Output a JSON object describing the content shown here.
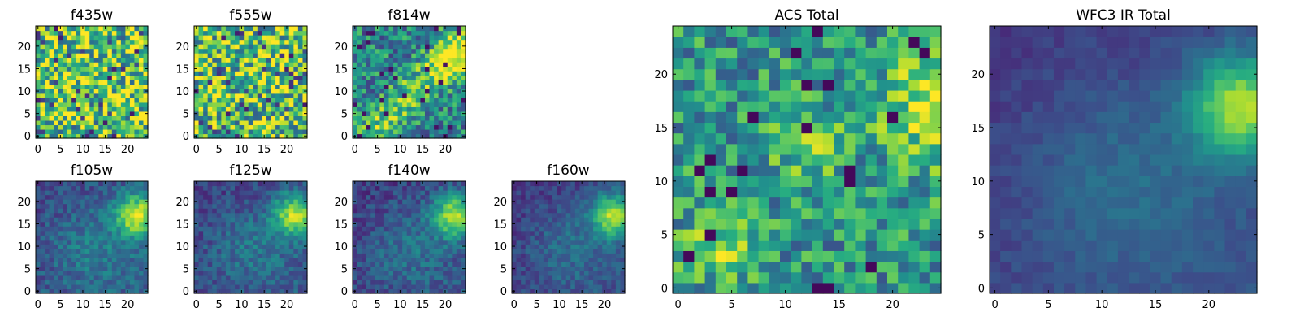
{
  "chart_data": [
    {
      "type": "heatmap",
      "title": "f435w",
      "grid": false,
      "colormap": "viridis",
      "pixels": [
        25,
        25
      ],
      "xlim": [
        -0.5,
        24.5
      ],
      "ylim": [
        -0.5,
        24.5
      ],
      "xticks": [
        "0",
        "5",
        "10",
        "15",
        "20"
      ],
      "yticks": [
        "0",
        "5",
        "10",
        "15",
        "20"
      ],
      "pattern": "uniform noise",
      "mean_level": 0.72,
      "hotspot_xy": null,
      "noise": 0.42,
      "seed": 11
    },
    {
      "type": "heatmap",
      "title": "f555w",
      "grid": false,
      "colormap": "viridis",
      "pixels": [
        25,
        25
      ],
      "xlim": [
        -0.5,
        24.5
      ],
      "ylim": [
        -0.5,
        24.5
      ],
      "xticks": [
        "0",
        "5",
        "10",
        "15",
        "20"
      ],
      "yticks": [
        "0",
        "5",
        "10",
        "15",
        "20"
      ],
      "pattern": "uniform noise",
      "mean_level": 0.72,
      "hotspot_xy": null,
      "noise": 0.42,
      "seed": 23
    },
    {
      "type": "heatmap",
      "title": "f814w",
      "grid": false,
      "colormap": "viridis",
      "pixels": [
        25,
        25
      ],
      "xlim": [
        -0.5,
        24.5
      ],
      "ylim": [
        -0.5,
        24.5
      ],
      "xticks": [
        "0",
        "5",
        "10",
        "15",
        "20"
      ],
      "yticks": [
        "0",
        "5",
        "10",
        "15",
        "20"
      ],
      "pattern": "diagonal ridge",
      "mean_level": 0.45,
      "hotspot_xy": [
        22,
        17
      ],
      "noise": 0.28,
      "seed": 37
    },
    {
      "type": "heatmap",
      "title": "f105w",
      "grid": false,
      "colormap": "viridis",
      "pixels": [
        25,
        25
      ],
      "xlim": [
        -0.5,
        24.5
      ],
      "ylim": [
        -0.5,
        24.5
      ],
      "xticks": [
        "0",
        "5",
        "10",
        "15",
        "20"
      ],
      "yticks": [
        "0",
        "5",
        "10",
        "15",
        "20"
      ],
      "pattern": "smooth gradient",
      "mean_level": 0.38,
      "hotspot_xy": [
        22,
        17
      ],
      "noise": 0.12,
      "seed": 41
    },
    {
      "type": "heatmap",
      "title": "f125w",
      "grid": false,
      "colormap": "viridis",
      "pixels": [
        25,
        25
      ],
      "xlim": [
        -0.5,
        24.5
      ],
      "ylim": [
        -0.5,
        24.5
      ],
      "xticks": [
        "0",
        "5",
        "10",
        "15",
        "20"
      ],
      "yticks": [
        "0",
        "5",
        "10",
        "15",
        "20"
      ],
      "pattern": "smooth gradient",
      "mean_level": 0.34,
      "hotspot_xy": [
        22,
        17
      ],
      "noise": 0.12,
      "seed": 53
    },
    {
      "type": "heatmap",
      "title": "f140w",
      "grid": false,
      "colormap": "viridis",
      "pixels": [
        25,
        25
      ],
      "xlim": [
        -0.5,
        24.5
      ],
      "ylim": [
        -0.5,
        24.5
      ],
      "xticks": [
        "0",
        "5",
        "10",
        "15",
        "20"
      ],
      "yticks": [
        "0",
        "5",
        "10",
        "15",
        "20"
      ],
      "pattern": "smooth gradient",
      "mean_level": 0.32,
      "hotspot_xy": [
        22,
        17
      ],
      "noise": 0.12,
      "seed": 67
    },
    {
      "type": "heatmap",
      "title": "f160w",
      "grid": false,
      "colormap": "viridis",
      "pixels": [
        25,
        25
      ],
      "xlim": [
        -0.5,
        24.5
      ],
      "ylim": [
        -0.5,
        24.5
      ],
      "xticks": [
        "0",
        "5",
        "10",
        "15",
        "20"
      ],
      "yticks": [
        "0",
        "5",
        "10",
        "15",
        "20"
      ],
      "pattern": "smooth gradient",
      "mean_level": 0.3,
      "hotspot_xy": [
        22,
        17
      ],
      "noise": 0.1,
      "seed": 79
    },
    {
      "type": "heatmap",
      "title": "ACS Total",
      "grid": false,
      "colormap": "viridis",
      "pixels": [
        25,
        25
      ],
      "xlim": [
        -0.5,
        24.5
      ],
      "ylim": [
        -0.5,
        24.5
      ],
      "xticks": [
        "0",
        "5",
        "10",
        "15",
        "20"
      ],
      "yticks": [
        "0",
        "5",
        "10",
        "15",
        "20"
      ],
      "pattern": "noisy with bright regions",
      "mean_level": 0.6,
      "hotspot_xy": [
        24,
        17
      ],
      "noise": 0.26,
      "seed": 97
    },
    {
      "type": "heatmap",
      "title": "WFC3 IR Total",
      "grid": false,
      "colormap": "viridis",
      "pixels": [
        25,
        25
      ],
      "xlim": [
        -0.5,
        24.5
      ],
      "ylim": [
        -0.5,
        24.5
      ],
      "xticks": [
        "0",
        "5",
        "10",
        "15",
        "20"
      ],
      "yticks": [
        "0",
        "5",
        "10",
        "15",
        "20"
      ],
      "pattern": "smooth gradient",
      "mean_level": 0.3,
      "hotspot_xy": [
        23,
        17
      ],
      "noise": 0.05,
      "seed": 101
    }
  ]
}
